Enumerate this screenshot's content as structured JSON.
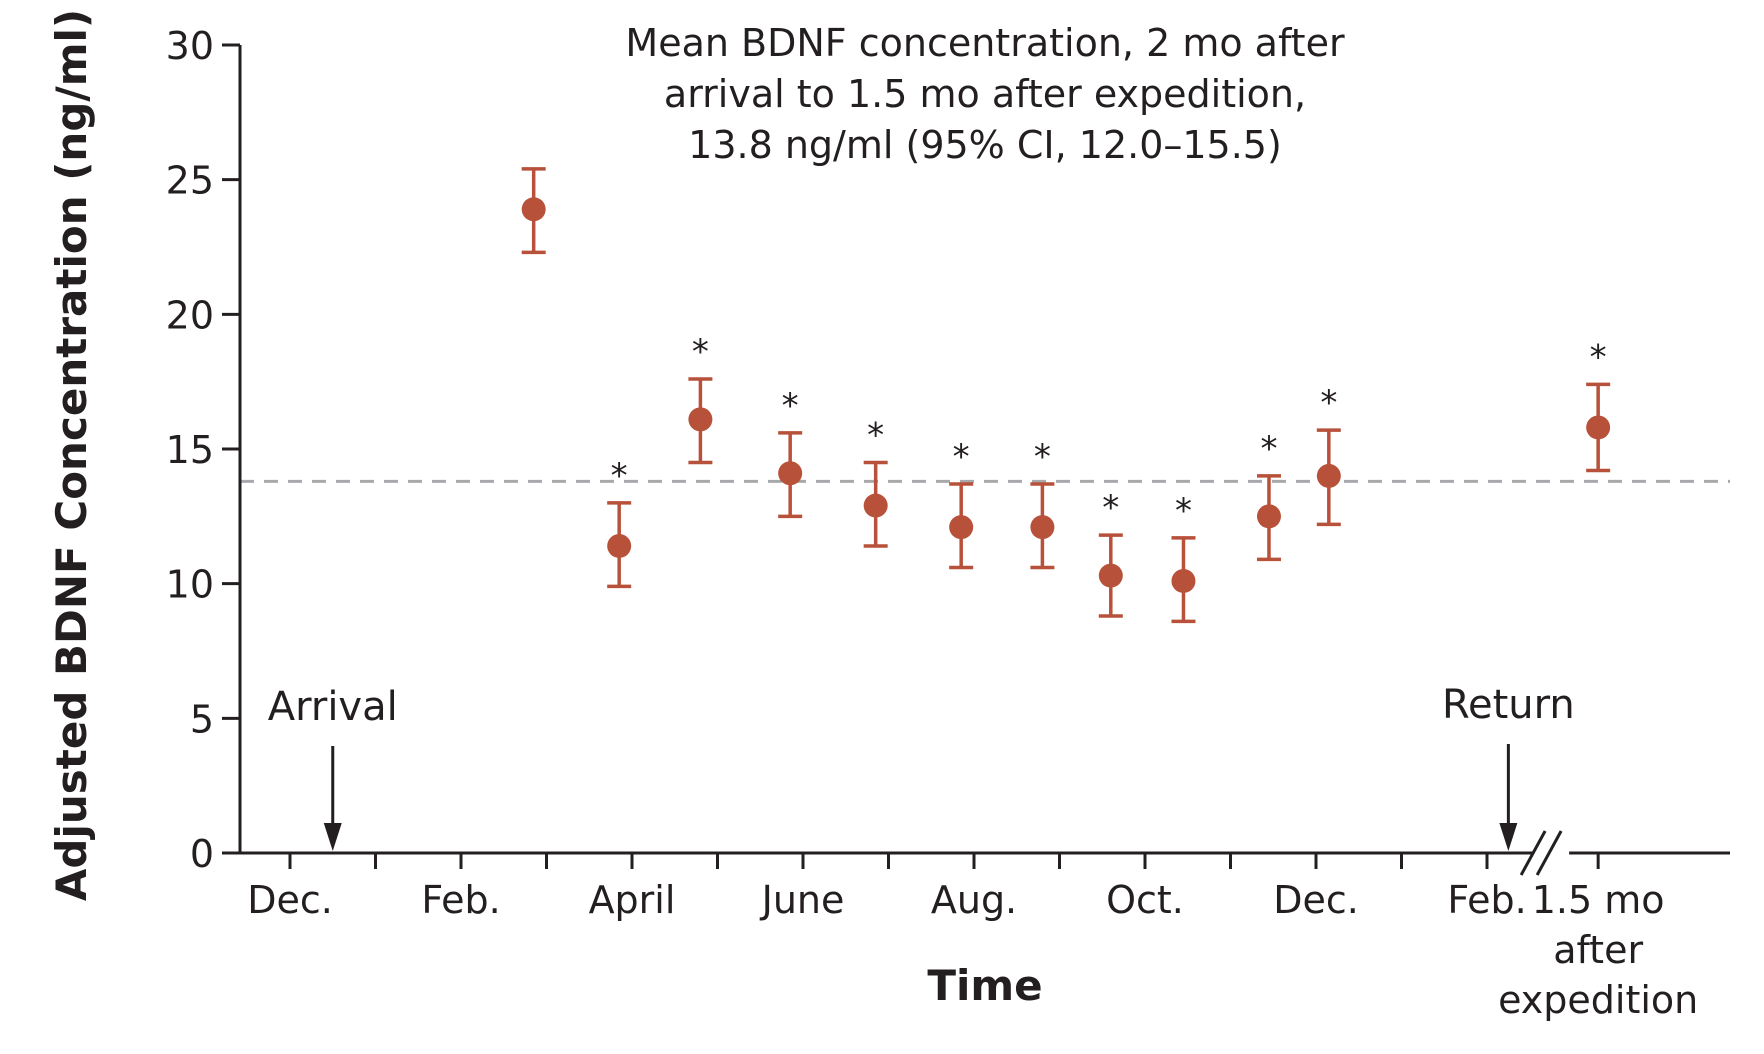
{
  "chart_data": {
    "type": "scatter",
    "title": "",
    "ylabel": "Adjusted BDNF Concentration (ng/ml)",
    "xlabel": "Time",
    "ylim": [
      0,
      30
    ],
    "yticks": [
      0,
      5,
      10,
      15,
      20,
      25,
      30
    ],
    "x_labels": [
      {
        "label": "Dec.",
        "month": 0
      },
      {
        "label": "Feb.",
        "month": 2
      },
      {
        "label": "April",
        "month": 4
      },
      {
        "label": "June",
        "month": 6
      },
      {
        "label": "Aug.",
        "month": 8
      },
      {
        "label": "Oct.",
        "month": 10
      },
      {
        "label": "Dec.",
        "month": 12
      },
      {
        "label": "Feb.",
        "month": 14
      },
      {
        "label": "1.5 mo after expedition",
        "lines": [
          "1.5 mo",
          "after",
          "expedition"
        ],
        "month": 15.3
      }
    ],
    "minor_tick_months": [
      0,
      1,
      2,
      3,
      4,
      5,
      6,
      7,
      8,
      9,
      10,
      11,
      12,
      13,
      14,
      15.3
    ],
    "axis_break_month": 14.75,
    "reference_line": {
      "value": 13.8,
      "note_lines": [
        "Mean BDNF concentration, 2 mo after",
        "arrival to 1.5 mo after expedition,",
        "13.8 ng/ml (95% CI, 12.0–15.5)"
      ],
      "color": "#a7a9ac"
    },
    "events": [
      {
        "label": "Arrival",
        "month": 0.5
      },
      {
        "label": "Return",
        "month": 14.25
      }
    ],
    "points": [
      {
        "month": 2.85,
        "value": 23.9,
        "lower": 22.3,
        "upper": 25.4,
        "significant": false
      },
      {
        "month": 3.85,
        "value": 11.4,
        "lower": 9.9,
        "upper": 13.0,
        "significant": true
      },
      {
        "month": 4.8,
        "value": 16.1,
        "lower": 14.5,
        "upper": 17.6,
        "significant": true
      },
      {
        "month": 5.85,
        "value": 14.1,
        "lower": 12.5,
        "upper": 15.6,
        "significant": true
      },
      {
        "month": 6.85,
        "value": 12.9,
        "lower": 11.4,
        "upper": 14.5,
        "significant": true
      },
      {
        "month": 7.85,
        "value": 12.1,
        "lower": 10.6,
        "upper": 13.7,
        "significant": true
      },
      {
        "month": 8.8,
        "value": 12.1,
        "lower": 10.6,
        "upper": 13.7,
        "significant": true
      },
      {
        "month": 9.6,
        "value": 10.3,
        "lower": 8.8,
        "upper": 11.8,
        "significant": true
      },
      {
        "month": 10.45,
        "value": 10.1,
        "lower": 8.6,
        "upper": 11.7,
        "significant": true
      },
      {
        "month": 11.45,
        "value": 12.5,
        "lower": 10.9,
        "upper": 14.0,
        "significant": true
      },
      {
        "month": 12.15,
        "value": 14.0,
        "lower": 12.2,
        "upper": 15.7,
        "significant": true
      },
      {
        "month": 15.3,
        "value": 15.8,
        "lower": 14.2,
        "upper": 17.4,
        "significant": true
      }
    ],
    "significance_marker": "*",
    "point_color": "#b8513a",
    "axis_color": "#231f20"
  }
}
